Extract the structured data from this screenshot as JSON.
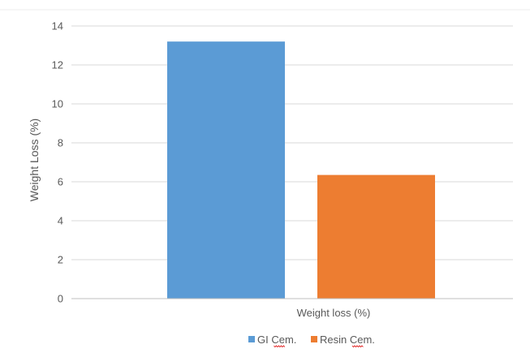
{
  "chart_data": {
    "type": "bar",
    "title": "",
    "xlabel": "",
    "ylabel": "Weight Loss  (%)",
    "ylim": [
      0,
      14
    ],
    "yticks": [
      0,
      2,
      4,
      6,
      8,
      10,
      12,
      14
    ],
    "categories": [
      "Weight loss (%)"
    ],
    "series": [
      {
        "name": "GI Cem.",
        "values": [
          13.2
        ],
        "color": "#5b9bd5"
      },
      {
        "name": "Resin Cem.",
        "values": [
          6.35
        ],
        "color": "#ed7d31"
      }
    ],
    "grid": true,
    "legend_position": "bottom"
  },
  "colors": {
    "grid": "#d9d9d9",
    "text": "#595959",
    "spellcheck": "#e02020"
  }
}
